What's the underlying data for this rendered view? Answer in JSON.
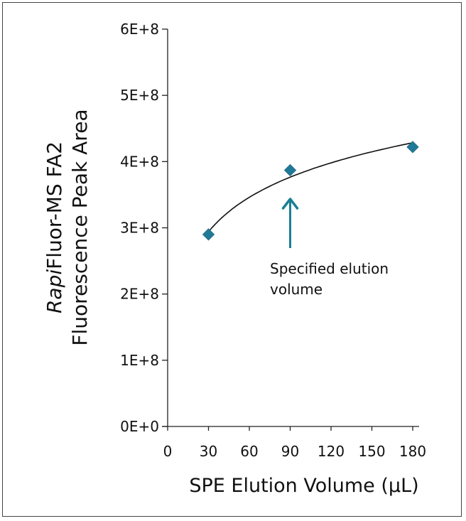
{
  "chart_data": {
    "type": "scatter",
    "xlabel": "SPE Elution Volume (µL)",
    "ylabel_line1_italic": "Rapi",
    "ylabel_line1_rest": "Fluor-MS FA2",
    "ylabel_line2": "Fluorescence Peak Area",
    "xlim": [
      0,
      180
    ],
    "ylim": [
      0,
      600000000
    ],
    "xticks": [
      0,
      30,
      60,
      90,
      120,
      150,
      180
    ],
    "xtick_labels": [
      "0",
      "30",
      "60",
      "90",
      "120",
      "150",
      "180"
    ],
    "yticks": [
      0,
      100000000,
      200000000,
      300000000,
      400000000,
      500000000,
      600000000
    ],
    "ytick_labels": [
      "0E+0",
      "1E+8",
      "2E+8",
      "3E+8",
      "4E+8",
      "5E+8",
      "6E+8"
    ],
    "grid": false,
    "points": [
      {
        "x": 30,
        "y": 290000000
      },
      {
        "x": 90,
        "y": 387000000
      },
      {
        "x": 180,
        "y": 422000000
      }
    ],
    "trendline": "logarithmic",
    "marker": "diamond",
    "marker_color": "#1f7a99",
    "trendline_color": "#111111",
    "annotation": {
      "x": 90,
      "lines": [
        "Specified elution",
        "volume"
      ],
      "arrow_color": "#1b7f93"
    }
  }
}
